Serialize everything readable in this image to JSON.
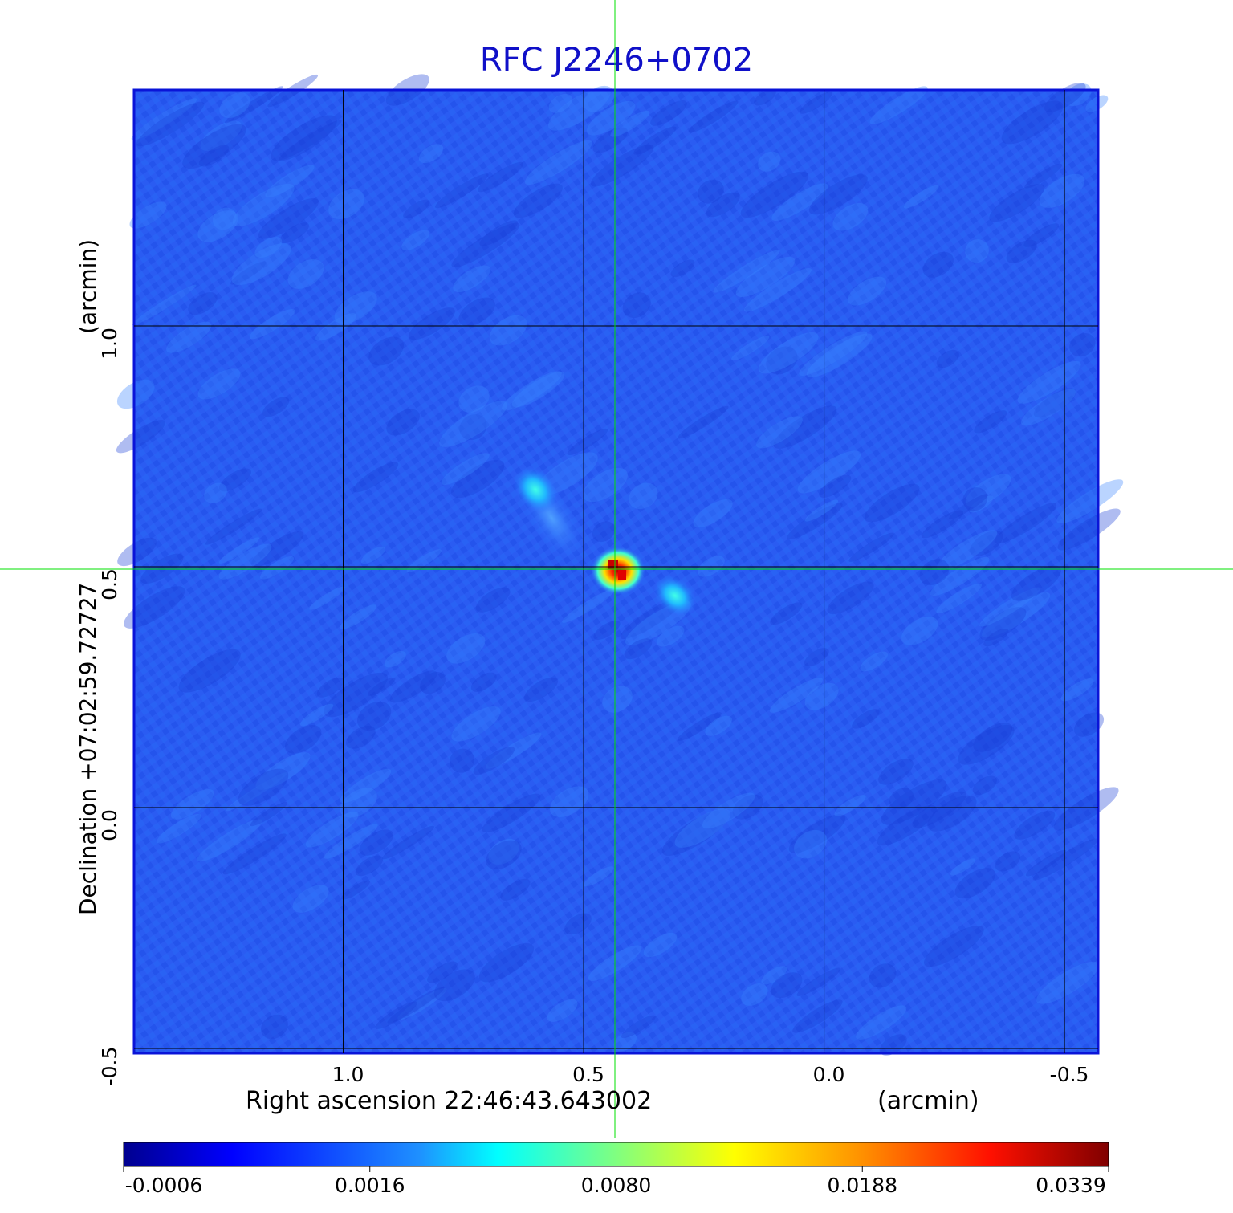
{
  "chart_data": {
    "type": "heatmap",
    "title": "RFC J2246+0702",
    "x_axis": {
      "label": "Right ascension  22:46:43.643002",
      "unit_label": "(arcmin)",
      "ticks": [
        "1.0",
        "0.5",
        "0.0",
        "-0.5"
      ],
      "tick_values": [
        1.0,
        0.5,
        0.0,
        -0.5
      ],
      "range": [
        1.435,
        -0.57
      ]
    },
    "y_axis": {
      "label": "Declination  +07:02:59.72727",
      "unit_label": "(arcmin)",
      "ticks": [
        "1.0",
        "0.5",
        "0.0",
        "-0.5"
      ],
      "tick_values": [
        1.0,
        0.5,
        0.0,
        -0.5
      ],
      "range": [
        -0.51,
        1.49
      ]
    },
    "colorbar": {
      "colormap": "jet",
      "ticks": [
        "-0.0006",
        "0.0016",
        "0.0080",
        "0.0188",
        "0.0339"
      ],
      "tick_values": [
        -0.0006,
        0.0016,
        0.008,
        0.0188,
        0.0339
      ]
    },
    "features": [
      {
        "x": 0.435,
        "y": 0.495,
        "peak": 0.0339
      },
      {
        "x": 0.31,
        "y": 0.44,
        "peak": 0.006
      },
      {
        "x": 0.6,
        "y": 0.66,
        "peak": 0.004
      }
    ],
    "crosshair": {
      "x": 0.435,
      "y": 0.495
    },
    "grid": true
  },
  "colors": {
    "title": "#1010c8",
    "crosshair": "#00e000",
    "grid": "#000000"
  }
}
